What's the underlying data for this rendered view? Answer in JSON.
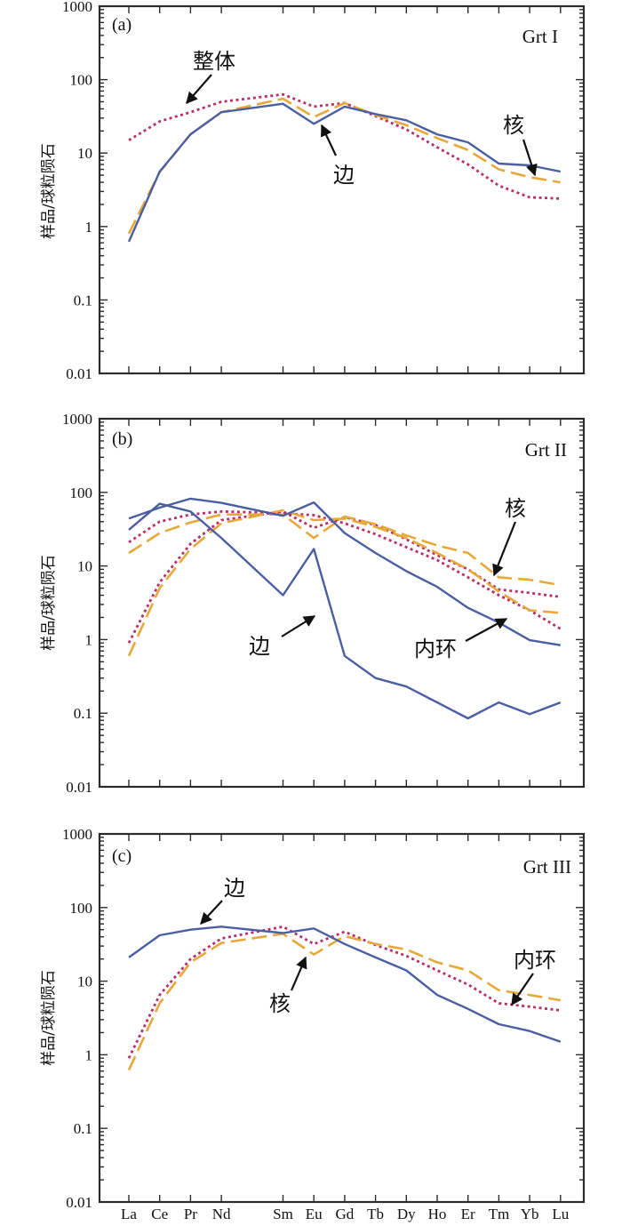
{
  "figure": {
    "ylabel": "样品/球粒陨石",
    "y_tick_labels": [
      "0.01",
      "0.1",
      "1",
      "10",
      "100",
      "1000"
    ],
    "x_tick_labels": [
      "La",
      "Ce",
      "Pr",
      "Nd",
      "Sm",
      "Eu",
      "Gd",
      "Tb",
      "Dy",
      "Ho",
      "Er",
      "Tm",
      "Yb",
      "Lu"
    ]
  },
  "colors": {
    "rim": "#4a5fa2",
    "inner": "#b5306a",
    "core": "#e7a83a"
  },
  "chart_data": [
    {
      "type": "line",
      "panel": "(a)",
      "title": "Grt I",
      "ylabel": "样品/球粒陨石",
      "yscale": "log",
      "ylim": [
        0.01,
        1000
      ],
      "x": [
        "La",
        "Ce",
        "Pr",
        "Nd",
        "Sm",
        "Eu",
        "Gd",
        "Tb",
        "Dy",
        "Ho",
        "Er",
        "Tm",
        "Yb",
        "Lu"
      ],
      "annotations": [
        {
          "text": "整体",
          "points_to": "Pr"
        },
        {
          "text": "边",
          "points_to": "Eu"
        },
        {
          "text": "核",
          "points_to": "Yb"
        }
      ],
      "series": [
        {
          "name": "inner",
          "style": "dotted",
          "values": [
            15,
            27,
            36,
            50,
            63,
            43,
            48,
            32,
            21,
            12,
            7,
            3.6,
            2.5,
            2.4
          ]
        },
        {
          "name": "core",
          "style": "dashed",
          "values": [
            0.8,
            5.5,
            18,
            36,
            55,
            31,
            48,
            33,
            24,
            16,
            11,
            6,
            4.7,
            4
          ]
        },
        {
          "name": "rim",
          "style": "solid",
          "values": [
            0.62,
            5.6,
            18,
            36,
            47,
            25,
            43,
            34,
            28,
            18,
            14,
            7.2,
            6.8,
            5.6
          ]
        }
      ]
    },
    {
      "type": "line",
      "panel": "(b)",
      "title": "Grt II",
      "ylabel": "样品/球粒陨石",
      "yscale": "log",
      "ylim": [
        0.01,
        1000
      ],
      "x": [
        "La",
        "Ce",
        "Pr",
        "Nd",
        "Sm",
        "Eu",
        "Gd",
        "Tb",
        "Dy",
        "Ho",
        "Er",
        "Tm",
        "Yb",
        "Lu"
      ],
      "annotations": [
        {
          "text": "核",
          "points_to": "Tm"
        },
        {
          "text": "边",
          "points_to": "Eu"
        },
        {
          "text": "内环",
          "points_to": "Yb"
        }
      ],
      "series": [
        {
          "name": "core-1",
          "style": "dashed",
          "values": [
            0.6,
            5,
            17,
            38,
            57,
            42,
            44,
            34,
            24,
            15,
            9,
            4.5,
            2.5,
            2.3
          ]
        },
        {
          "name": "core-2",
          "style": "dashed",
          "values": [
            15,
            28,
            39,
            50,
            50,
            24,
            47,
            37,
            26,
            19,
            15,
            7,
            6.5,
            5.5
          ]
        },
        {
          "name": "inner-1",
          "style": "dotted",
          "values": [
            0.9,
            6,
            20,
            42,
            55,
            33,
            46,
            36,
            23,
            14,
            9,
            4.8,
            4.3,
            3.8
          ]
        },
        {
          "name": "inner-2",
          "style": "dotted",
          "values": [
            21,
            40,
            50,
            55,
            52,
            49,
            38,
            27,
            18,
            12,
            7,
            4,
            2.5,
            1.4
          ]
        },
        {
          "name": "rim-1",
          "style": "solid",
          "values": [
            31,
            70,
            55,
            24,
            4,
            17,
            0.6,
            0.3,
            0.23,
            0.14,
            0.085,
            0.14,
            0.097,
            0.14
          ]
        },
        {
          "name": "rim-2",
          "style": "solid",
          "values": [
            44,
            62,
            82,
            72,
            48,
            73,
            28,
            15,
            8.5,
            5.2,
            2.7,
            1.7,
            0.98,
            0.84
          ]
        }
      ]
    },
    {
      "type": "line",
      "panel": "(c)",
      "title": "Grt III",
      "ylabel": "样品/球粒陨石",
      "yscale": "log",
      "ylim": [
        0.01,
        1000
      ],
      "x": [
        "La",
        "Ce",
        "Pr",
        "Nd",
        "Sm",
        "Eu",
        "Gd",
        "Tb",
        "Dy",
        "Ho",
        "Er",
        "Tm",
        "Yb",
        "Lu"
      ],
      "annotations": [
        {
          "text": "边",
          "points_to": "Pr"
        },
        {
          "text": "核",
          "points_to": "Eu"
        },
        {
          "text": "内环",
          "points_to": "Yb"
        }
      ],
      "series": [
        {
          "name": "core",
          "style": "dashed",
          "values": [
            0.62,
            5,
            18,
            33,
            44,
            23,
            41,
            32,
            27,
            18,
            14,
            7.5,
            6.5,
            5.5
          ]
        },
        {
          "name": "inner",
          "style": "dotted",
          "values": [
            0.9,
            6.5,
            20,
            38,
            55,
            32,
            47,
            31,
            22,
            14,
            9,
            5,
            4.5,
            4
          ]
        },
        {
          "name": "rim",
          "style": "solid",
          "values": [
            21,
            42,
            50,
            55,
            45,
            52,
            32,
            21,
            14,
            6.5,
            4.2,
            2.6,
            2.1,
            1.5
          ]
        }
      ]
    }
  ]
}
